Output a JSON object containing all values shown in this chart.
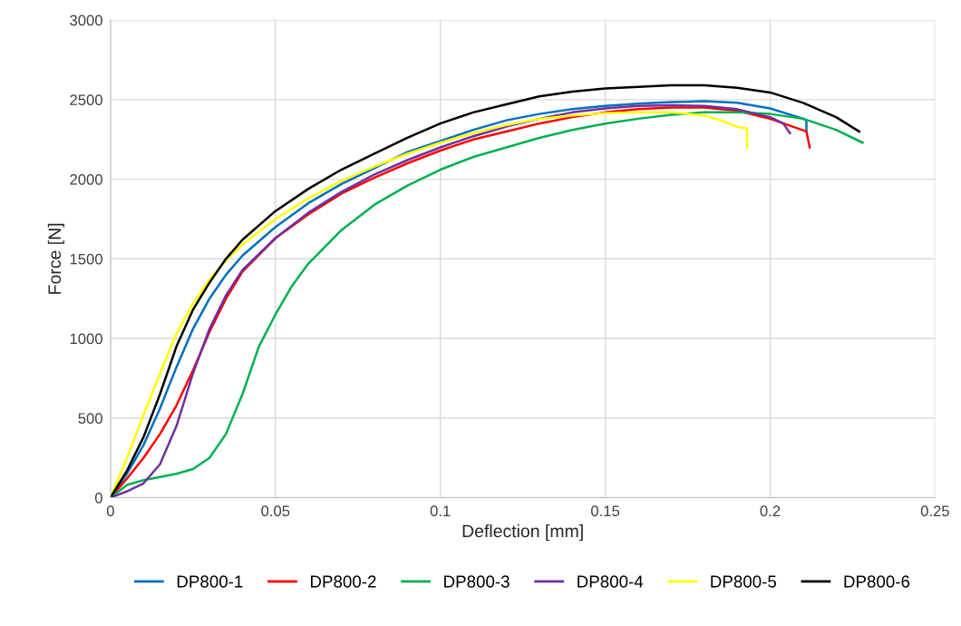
{
  "chart_data": {
    "type": "line",
    "xlabel": "Deflection [mm]",
    "ylabel": "Force [N]",
    "xlim": [
      0,
      0.25
    ],
    "ylim": [
      0,
      3000
    ],
    "xticks": [
      0,
      0.05,
      0.1,
      0.15,
      0.2,
      0.25
    ],
    "yticks": [
      0,
      500,
      1000,
      1500,
      2000,
      2500,
      3000
    ],
    "grid": true,
    "legend": "bottom",
    "marker": "none",
    "line_style": "solid",
    "series": [
      {
        "name": "DP800-1",
        "color": "#0070c0",
        "x": [
          0,
          0.005,
          0.01,
          0.015,
          0.02,
          0.025,
          0.03,
          0.035,
          0.04,
          0.05,
          0.06,
          0.07,
          0.08,
          0.09,
          0.1,
          0.11,
          0.12,
          0.13,
          0.14,
          0.15,
          0.16,
          0.17,
          0.18,
          0.19,
          0.2,
          0.21,
          0.211,
          0.211
        ],
        "values": [
          0,
          150,
          330,
          560,
          820,
          1060,
          1250,
          1400,
          1520,
          1700,
          1850,
          1970,
          2070,
          2170,
          2240,
          2310,
          2370,
          2410,
          2440,
          2460,
          2475,
          2485,
          2490,
          2480,
          2445,
          2380,
          2370,
          2310
        ]
      },
      {
        "name": "DP800-2",
        "color": "#ff0000",
        "x": [
          0,
          0.005,
          0.01,
          0.015,
          0.02,
          0.025,
          0.03,
          0.035,
          0.04,
          0.05,
          0.06,
          0.07,
          0.08,
          0.09,
          0.1,
          0.11,
          0.12,
          0.13,
          0.14,
          0.15,
          0.16,
          0.17,
          0.18,
          0.19,
          0.2,
          0.211,
          0.212
        ],
        "values": [
          0,
          120,
          250,
          400,
          580,
          800,
          1040,
          1250,
          1420,
          1630,
          1780,
          1910,
          2010,
          2100,
          2180,
          2250,
          2300,
          2350,
          2390,
          2420,
          2440,
          2450,
          2450,
          2430,
          2380,
          2300,
          2200
        ]
      },
      {
        "name": "DP800-3",
        "color": "#00b050",
        "x": [
          0,
          0.005,
          0.01,
          0.02,
          0.025,
          0.03,
          0.035,
          0.04,
          0.045,
          0.05,
          0.055,
          0.06,
          0.07,
          0.08,
          0.09,
          0.1,
          0.11,
          0.12,
          0.13,
          0.14,
          0.15,
          0.16,
          0.17,
          0.18,
          0.19,
          0.2,
          0.21,
          0.22,
          0.228
        ],
        "values": [
          0,
          80,
          110,
          150,
          180,
          250,
          400,
          650,
          950,
          1150,
          1330,
          1470,
          1680,
          1840,
          1960,
          2060,
          2140,
          2200,
          2260,
          2310,
          2350,
          2380,
          2405,
          2420,
          2420,
          2410,
          2380,
          2310,
          2230
        ]
      },
      {
        "name": "DP800-4",
        "color": "#7030a0",
        "x": [
          0,
          0.005,
          0.01,
          0.015,
          0.02,
          0.025,
          0.03,
          0.035,
          0.04,
          0.05,
          0.06,
          0.07,
          0.08,
          0.09,
          0.1,
          0.11,
          0.12,
          0.13,
          0.14,
          0.15,
          0.16,
          0.17,
          0.18,
          0.19,
          0.2,
          0.204,
          0.206
        ],
        "values": [
          0,
          40,
          90,
          210,
          450,
          780,
          1060,
          1270,
          1430,
          1630,
          1790,
          1920,
          2030,
          2120,
          2200,
          2270,
          2330,
          2380,
          2420,
          2445,
          2460,
          2465,
          2460,
          2440,
          2390,
          2350,
          2290
        ]
      },
      {
        "name": "DP800-5",
        "color": "#ffff00",
        "x": [
          0,
          0.005,
          0.01,
          0.015,
          0.02,
          0.025,
          0.03,
          0.035,
          0.04,
          0.05,
          0.06,
          0.07,
          0.08,
          0.09,
          0.1,
          0.11,
          0.12,
          0.13,
          0.14,
          0.15,
          0.16,
          0.17,
          0.175,
          0.18,
          0.185,
          0.19,
          0.193,
          0.193
        ],
        "values": [
          0,
          250,
          520,
          780,
          1030,
          1220,
          1370,
          1490,
          1590,
          1750,
          1880,
          1990,
          2080,
          2160,
          2230,
          2290,
          2340,
          2380,
          2400,
          2415,
          2420,
          2420,
          2410,
          2400,
          2370,
          2330,
          2320,
          2200
        ]
      },
      {
        "name": "DP800-6",
        "color": "#000000",
        "x": [
          0,
          0.005,
          0.01,
          0.015,
          0.02,
          0.025,
          0.03,
          0.035,
          0.04,
          0.05,
          0.06,
          0.07,
          0.08,
          0.09,
          0.1,
          0.11,
          0.12,
          0.13,
          0.14,
          0.15,
          0.16,
          0.17,
          0.18,
          0.19,
          0.2,
          0.21,
          0.22,
          0.227
        ],
        "values": [
          0,
          170,
          380,
          650,
          950,
          1180,
          1350,
          1500,
          1620,
          1800,
          1940,
          2060,
          2160,
          2260,
          2350,
          2420,
          2470,
          2520,
          2550,
          2570,
          2580,
          2590,
          2590,
          2575,
          2545,
          2480,
          2390,
          2300
        ]
      }
    ]
  }
}
